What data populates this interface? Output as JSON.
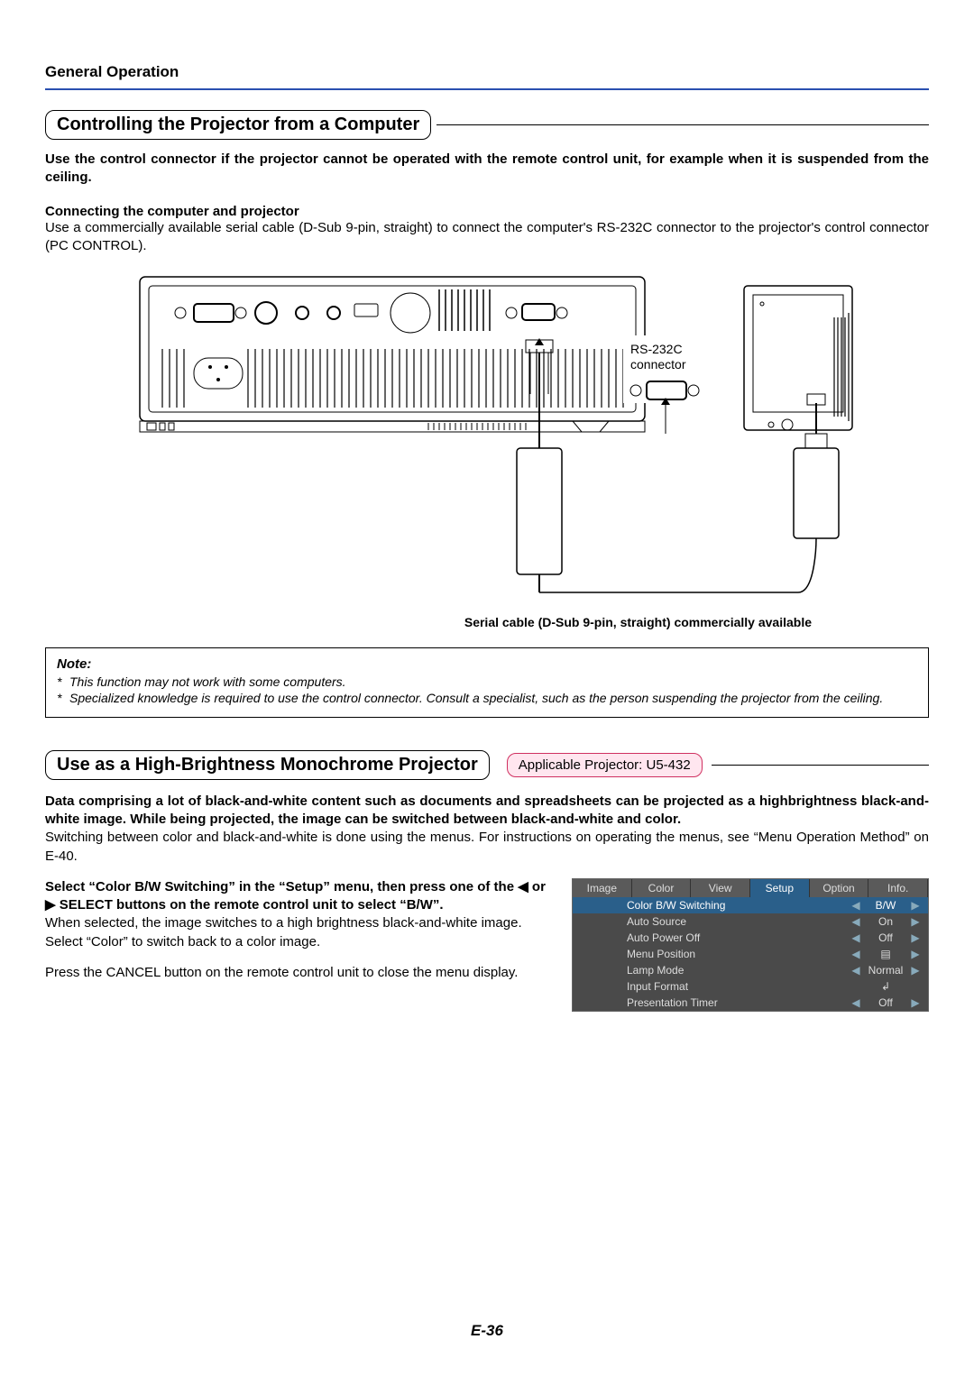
{
  "header": {
    "label": "General Operation"
  },
  "section1": {
    "title": "Controlling the Projector from a Computer",
    "intro": "Use the control connector if the projector cannot be operated with the remote control unit, for example when it is suspended from the ceiling.",
    "sub1_title": "Connecting the computer and projector",
    "sub1_body": "Use a commercially available serial cable (D-Sub 9-pin, straight) to connect the computer's RS-232C connector to the projector's control connector (PC CONTROL).",
    "diagram": {
      "rs_label1": "RS-232C",
      "rs_label2": "connector",
      "serial_caption": "Serial cable (D-Sub 9-pin, straight) commercially available"
    },
    "note": {
      "title": "Note:",
      "line1": "This function may not work with some computers.",
      "line2": "Specialized knowledge is required to use the control connector. Consult a specialist, such as the person suspending the projector from the ceiling."
    }
  },
  "section2": {
    "title": "Use as a High-Brightness Monochrome Projector",
    "applicable": "Applicable Projector: U5-432",
    "intro_bold": "Data comprising a lot of black-and-white content such as documents and spreadsheets can be projected as a highbrightness black-and-white image. While being projected, the image can be switched between black-and-white and color.",
    "intro_body": "Switching between color and black-and-white is done using the menus. For instructions on operating the menus, see “Menu Operation Method” on E-40.",
    "left": {
      "p1": "Select “Color B/W Switching” in the “Setup” menu, then press one of the ◀ or ▶ SELECT buttons on the remote control unit to select “B/W”.",
      "p2": "When selected, the image switches to a high brightness black-and-white image.",
      "p3": "Select “Color” to switch back to a color image.",
      "p4": "Press the CANCEL button on the remote control unit to close the menu display."
    },
    "menu": {
      "tabs": [
        "Image",
        "Color",
        "View",
        "Setup",
        "Option",
        "Info."
      ],
      "active_tab": 3,
      "rows": [
        {
          "label": "Color B/W Switching",
          "val": "B/W",
          "hl": true
        },
        {
          "label": "Auto Source",
          "val": "On"
        },
        {
          "label": "Auto Power Off",
          "val": "Off"
        },
        {
          "label": "Menu Position",
          "val": "▤"
        },
        {
          "label": "Lamp Mode",
          "val": "Normal"
        },
        {
          "label": "Input Format",
          "val": "↲",
          "noarrows": true
        },
        {
          "label": "Presentation Timer",
          "val": "Off"
        }
      ]
    }
  },
  "page_num": "E-36"
}
